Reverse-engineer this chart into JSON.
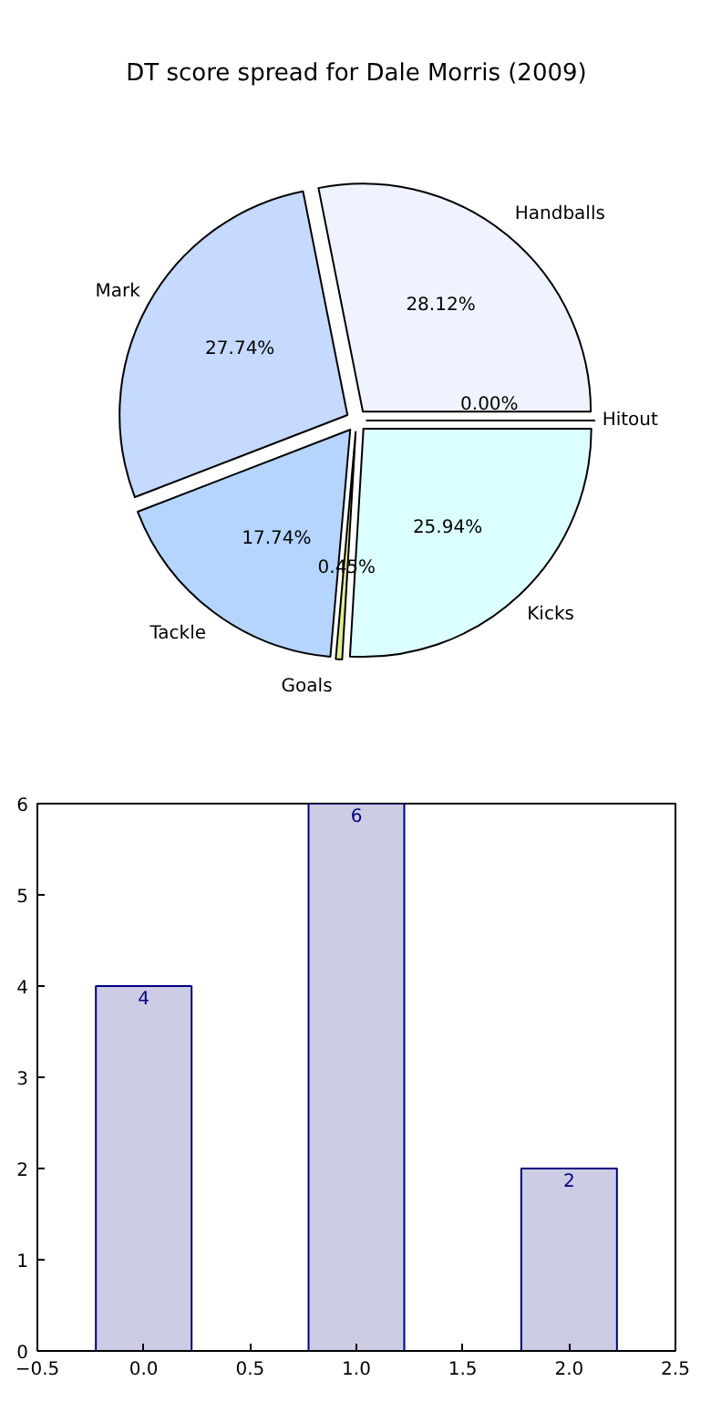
{
  "chart_data": [
    {
      "type": "pie",
      "title": "DT score spread for Dale Morris (2009)",
      "categories": [
        "Handballs",
        "Mark",
        "Tackle",
        "Goals",
        "Kicks",
        "Hitout"
      ],
      "values": [
        28.12,
        27.74,
        17.74,
        0.45,
        25.94,
        0.0
      ],
      "value_labels": [
        "28.12%",
        "27.74%",
        "17.74%",
        "0.45%",
        "25.94%",
        "0.00%"
      ],
      "colors": [
        "#eef3ff",
        "#c6d9ff",
        "#b5d5ff",
        "#e0f090",
        "#dcffff",
        "#e8e8e8"
      ]
    },
    {
      "type": "bar",
      "x": [
        0,
        1,
        2
      ],
      "values": [
        4,
        6,
        2
      ],
      "color": "#cccce5",
      "data_labels": true,
      "xlim": [
        -0.5,
        2.5
      ],
      "ylim": [
        0,
        6
      ],
      "xticks": [
        {
          "value": -0.5,
          "label": "−0.5"
        },
        {
          "value": 0,
          "label": "0.0"
        },
        {
          "value": 0.5,
          "label": "0.5"
        },
        {
          "value": 1,
          "label": "1.0"
        },
        {
          "value": 1.5,
          "label": "1.5"
        },
        {
          "value": 2,
          "label": "2.0"
        },
        {
          "value": 2.5,
          "label": "2.5"
        }
      ],
      "yticks": [
        0,
        1,
        2,
        3,
        4,
        5,
        6
      ],
      "grid": false
    }
  ]
}
